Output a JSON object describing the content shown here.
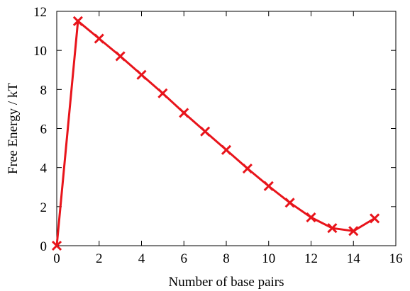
{
  "chart_data": {
    "type": "line",
    "xlabel": "Number of base pairs",
    "ylabel": "Free Energy / kT",
    "xlim": [
      0,
      16
    ],
    "ylim": [
      0,
      12
    ],
    "xticks": [
      0,
      2,
      4,
      6,
      8,
      10,
      12,
      14,
      16
    ],
    "yticks": [
      0,
      2,
      4,
      6,
      8,
      10,
      12
    ],
    "grid": false,
    "series": [
      {
        "color": "#e8141b",
        "marker": "x",
        "x": [
          0,
          1,
          2,
          3,
          4,
          5,
          6,
          7,
          8,
          9,
          10,
          11,
          12,
          13,
          14,
          15
        ],
        "y": [
          0.0,
          11.5,
          10.6,
          9.7,
          8.75,
          7.8,
          6.8,
          5.85,
          4.9,
          3.95,
          3.05,
          2.2,
          1.45,
          0.9,
          0.75,
          1.4
        ]
      }
    ]
  }
}
